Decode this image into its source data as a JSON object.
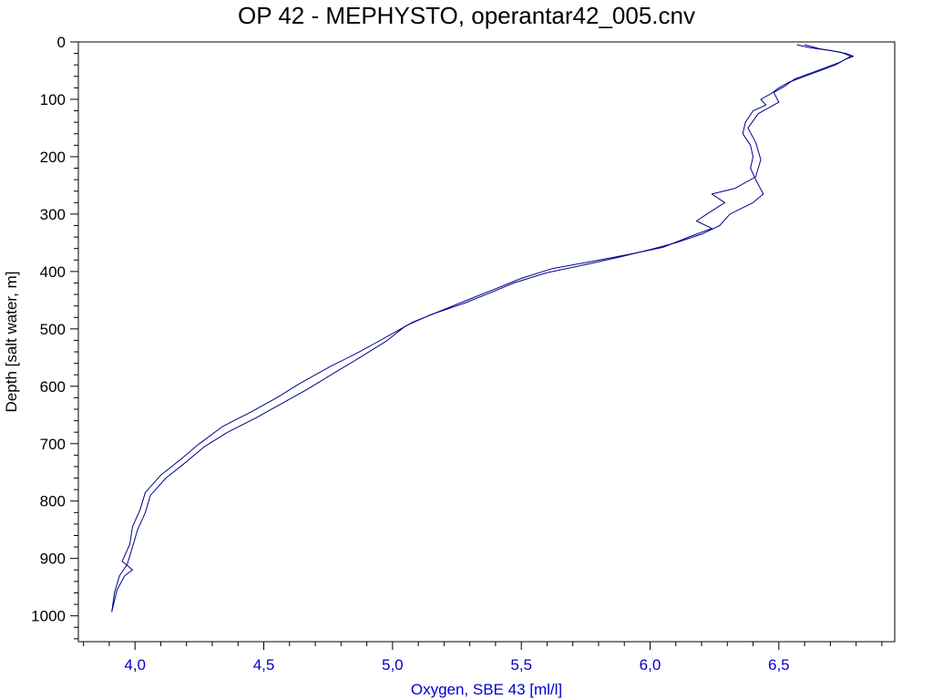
{
  "chart_data": {
    "type": "line",
    "title": "OP 42 - MEPHYSTO, operantar42_005.cnv",
    "xlabel": "Oxygen, SBE 43 [ml/l]",
    "ylabel": "Depth [salt water, m]",
    "xlim": [
      3.78,
      6.95
    ],
    "ylim": [
      1045,
      0
    ],
    "y_inverted": true,
    "grid": false,
    "x_ticks": [
      4.0,
      4.5,
      5.0,
      5.5,
      6.0,
      6.5
    ],
    "x_tick_labels": [
      "4,0",
      "4,5",
      "5,0",
      "5,5",
      "6,0",
      "6,5"
    ],
    "y_ticks": [
      0,
      100,
      200,
      300,
      400,
      500,
      600,
      700,
      800,
      900,
      1000
    ],
    "y_tick_labels": [
      "0",
      "100",
      "200",
      "300",
      "400",
      "500",
      "600",
      "700",
      "800",
      "900",
      "1000"
    ],
    "colors": {
      "series": "#00008b",
      "x_axis_text": "#0000cc",
      "y_axis_text": "#000000"
    },
    "series": [
      {
        "values": [
          [
            6.57,
            5
          ],
          [
            6.62,
            10
          ],
          [
            6.7,
            15
          ],
          [
            6.76,
            20
          ],
          [
            6.79,
            25
          ],
          [
            6.76,
            30
          ],
          [
            6.72,
            40
          ],
          [
            6.66,
            50
          ],
          [
            6.6,
            60
          ],
          [
            6.54,
            70
          ],
          [
            6.5,
            80
          ],
          [
            6.47,
            90
          ],
          [
            6.43,
            100
          ],
          [
            6.45,
            110
          ],
          [
            6.4,
            120
          ],
          [
            6.37,
            140
          ],
          [
            6.36,
            160
          ],
          [
            6.39,
            180
          ],
          [
            6.4,
            200
          ],
          [
            6.39,
            220
          ],
          [
            6.41,
            240
          ],
          [
            6.44,
            265
          ],
          [
            6.4,
            280
          ],
          [
            6.31,
            300
          ],
          [
            6.27,
            320
          ],
          [
            6.2,
            335
          ],
          [
            6.1,
            350
          ],
          [
            6.0,
            362
          ],
          [
            5.88,
            375
          ],
          [
            5.75,
            388
          ],
          [
            5.6,
            402
          ],
          [
            5.47,
            420
          ],
          [
            5.38,
            437
          ],
          [
            5.28,
            455
          ],
          [
            5.15,
            475
          ],
          [
            5.05,
            495
          ],
          [
            4.98,
            520
          ],
          [
            4.88,
            548
          ],
          [
            4.78,
            575
          ],
          [
            4.67,
            605
          ],
          [
            4.57,
            630
          ],
          [
            4.47,
            655
          ],
          [
            4.36,
            680
          ],
          [
            4.27,
            705
          ],
          [
            4.19,
            735
          ],
          [
            4.12,
            760
          ],
          [
            4.06,
            790
          ],
          [
            4.04,
            820
          ],
          [
            4.01,
            850
          ],
          [
            3.99,
            880
          ],
          [
            3.97,
            910
          ],
          [
            3.94,
            930
          ],
          [
            3.92,
            960
          ],
          [
            3.91,
            993
          ]
        ]
      },
      {
        "values": [
          [
            6.6,
            5
          ],
          [
            6.66,
            12
          ],
          [
            6.74,
            18
          ],
          [
            6.78,
            25
          ],
          [
            6.74,
            35
          ],
          [
            6.68,
            45
          ],
          [
            6.62,
            55
          ],
          [
            6.56,
            65
          ],
          [
            6.52,
            78
          ],
          [
            6.48,
            88
          ],
          [
            6.5,
            105
          ],
          [
            6.42,
            125
          ],
          [
            6.38,
            150
          ],
          [
            6.41,
            175
          ],
          [
            6.43,
            205
          ],
          [
            6.41,
            235
          ],
          [
            6.33,
            255
          ],
          [
            6.24,
            265
          ],
          [
            6.29,
            280
          ],
          [
            6.22,
            300
          ],
          [
            6.18,
            312
          ],
          [
            6.24,
            325
          ],
          [
            6.15,
            340
          ],
          [
            6.05,
            358
          ],
          [
            5.92,
            370
          ],
          [
            5.78,
            382
          ],
          [
            5.62,
            395
          ],
          [
            5.5,
            412
          ],
          [
            5.4,
            430
          ],
          [
            5.3,
            448
          ],
          [
            5.18,
            470
          ],
          [
            5.08,
            488
          ],
          [
            5.0,
            508
          ],
          [
            4.92,
            528
          ],
          [
            4.85,
            545
          ],
          [
            4.76,
            565
          ],
          [
            4.64,
            595
          ],
          [
            4.55,
            620
          ],
          [
            4.45,
            645
          ],
          [
            4.34,
            670
          ],
          [
            4.25,
            700
          ],
          [
            4.17,
            730
          ],
          [
            4.1,
            755
          ],
          [
            4.04,
            785
          ],
          [
            4.02,
            815
          ],
          [
            3.99,
            845
          ],
          [
            3.98,
            875
          ],
          [
            3.95,
            905
          ],
          [
            3.99,
            920
          ],
          [
            3.96,
            930
          ],
          [
            3.93,
            955
          ],
          [
            3.91,
            993
          ]
        ]
      }
    ]
  }
}
